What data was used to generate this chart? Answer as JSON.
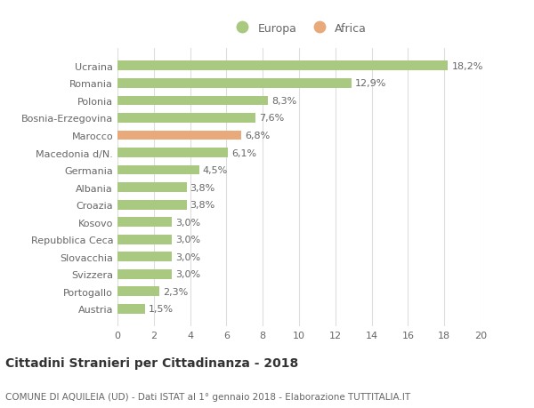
{
  "categories": [
    "Austria",
    "Portogallo",
    "Svizzera",
    "Slovacchia",
    "Repubblica Ceca",
    "Kosovo",
    "Croazia",
    "Albania",
    "Germania",
    "Macedonia d/N.",
    "Marocco",
    "Bosnia-Erzegovina",
    "Polonia",
    "Romania",
    "Ucraina"
  ],
  "values": [
    1.5,
    2.3,
    3.0,
    3.0,
    3.0,
    3.0,
    3.8,
    3.8,
    4.5,
    6.1,
    6.8,
    7.6,
    8.3,
    12.9,
    18.2
  ],
  "labels": [
    "1,5%",
    "2,3%",
    "3,0%",
    "3,0%",
    "3,0%",
    "3,0%",
    "3,8%",
    "3,8%",
    "4,5%",
    "6,1%",
    "6,8%",
    "7,6%",
    "8,3%",
    "12,9%",
    "18,2%"
  ],
  "colors": [
    "#a8c97f",
    "#a8c97f",
    "#a8c97f",
    "#a8c97f",
    "#a8c97f",
    "#a8c97f",
    "#a8c97f",
    "#a8c97f",
    "#a8c97f",
    "#a8c97f",
    "#e8aa7a",
    "#a8c97f",
    "#a8c97f",
    "#a8c97f",
    "#a8c97f"
  ],
  "europa_color": "#a8c97f",
  "africa_color": "#e8aa7a",
  "xlim": [
    0,
    20
  ],
  "xticks": [
    0,
    2,
    4,
    6,
    8,
    10,
    12,
    14,
    16,
    18,
    20
  ],
  "title": "Cittadini Stranieri per Cittadinanza - 2018",
  "subtitle": "COMUNE DI AQUILEIA (UD) - Dati ISTAT al 1° gennaio 2018 - Elaborazione TUTTITALIA.IT",
  "background_color": "#ffffff",
  "grid_color": "#dddddd",
  "label_fontsize": 8,
  "bar_label_fontsize": 8,
  "title_fontsize": 10,
  "subtitle_fontsize": 7.5
}
